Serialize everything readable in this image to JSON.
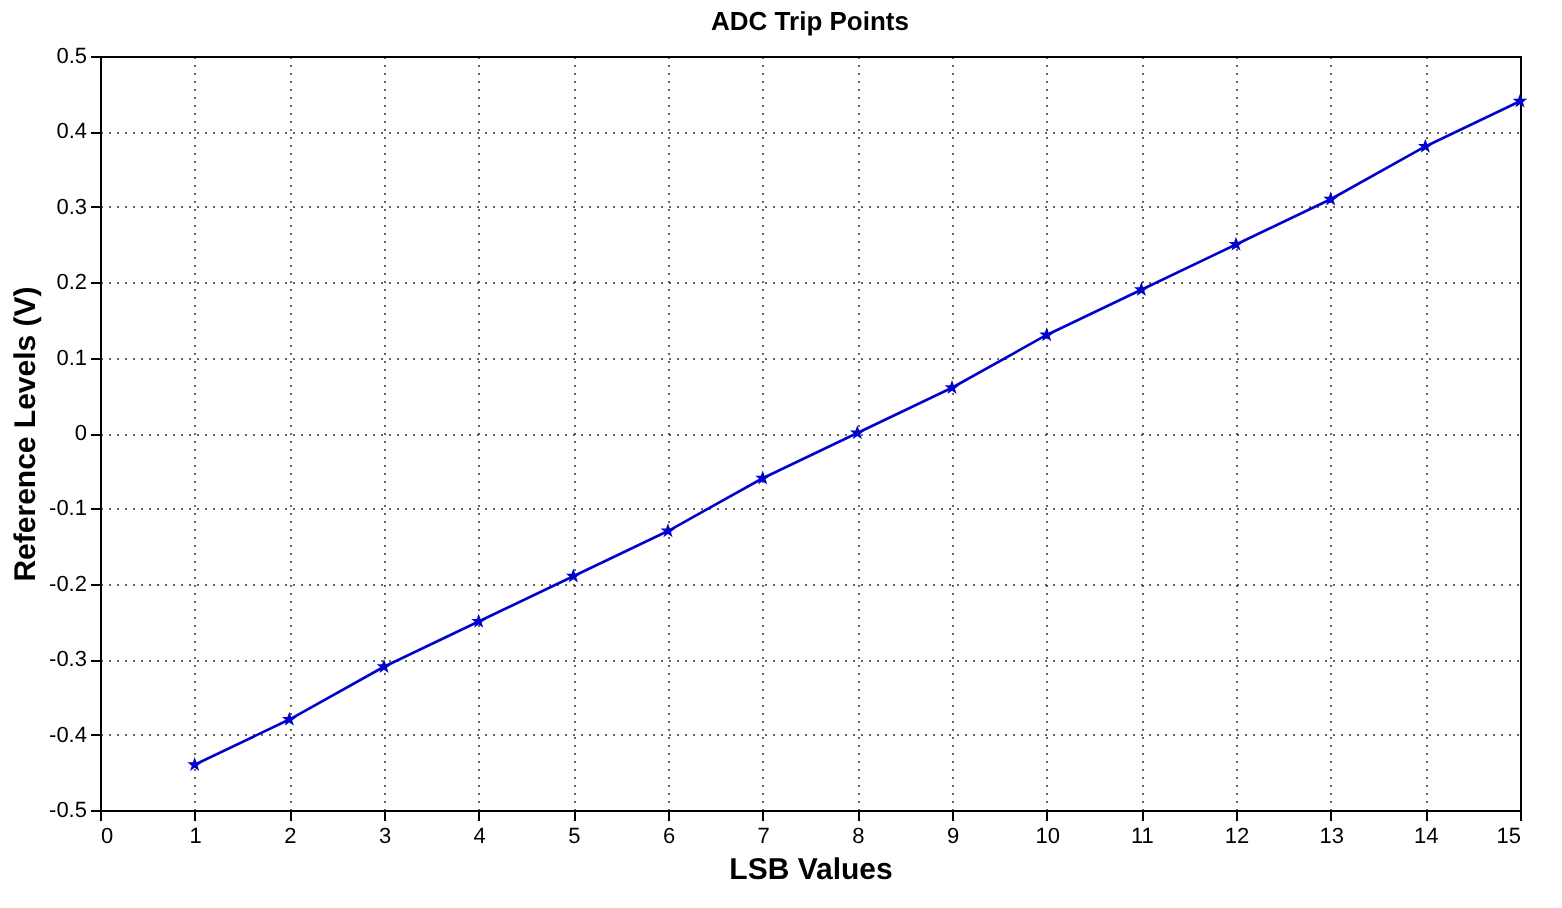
{
  "chart_data": {
    "type": "line",
    "title": "ADC Trip Points",
    "xlabel": "LSB Values",
    "ylabel": "Reference Levels (V)",
    "x": [
      1,
      2,
      3,
      4,
      5,
      6,
      7,
      8,
      9,
      10,
      11,
      12,
      13,
      14,
      15
    ],
    "series": [
      {
        "color": "#0000cc",
        "values": [
          -0.44,
          -0.38,
          -0.31,
          -0.25,
          -0.19,
          -0.13,
          -0.06,
          0,
          0.06,
          0.13,
          0.19,
          0.25,
          0.31,
          0.38,
          0.44
        ]
      }
    ],
    "xlim": [
      0,
      15
    ],
    "xticks": [
      0,
      1,
      2,
      3,
      4,
      5,
      6,
      7,
      8,
      9,
      10,
      11,
      12,
      13,
      14,
      15
    ],
    "ylim": [
      -0.5,
      0.5
    ],
    "yticks": [
      -0.5,
      -0.4,
      -0.3,
      -0.2,
      -0.1,
      0,
      0.1,
      0.2,
      0.3,
      0.4,
      0.5
    ],
    "grid": true,
    "marker": "star",
    "line_style": "solid"
  }
}
